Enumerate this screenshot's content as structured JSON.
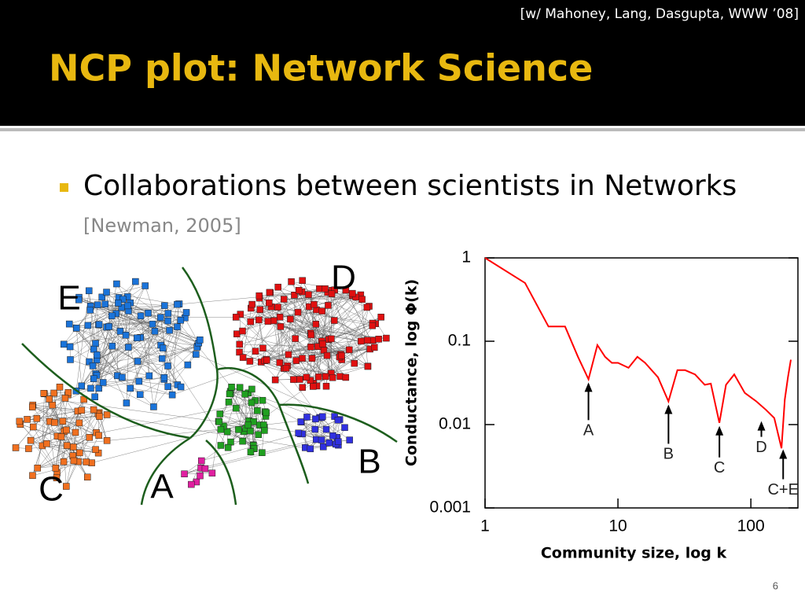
{
  "header": {
    "citation": "[w/ Mahoney, Lang, Dasgupta, WWW ’08]",
    "title": "NCP plot: Network Science"
  },
  "bullet": {
    "text": "Collaborations between scientists in Networks",
    "reference": "[Newman, 2005]"
  },
  "network": {
    "labels": [
      "E",
      "D",
      "C",
      "A",
      "B"
    ]
  },
  "chart_data": {
    "type": "line",
    "x_label": "Community size, log k",
    "y_label": "Conductance, log Φ(k)",
    "xscale": "log",
    "yscale": "log",
    "xlim": [
      1,
      226
    ],
    "ylim": [
      0.001,
      1
    ],
    "xticks": [
      1,
      10,
      100
    ],
    "yticks": [
      0.001,
      0.01,
      0.1,
      1
    ],
    "x": [
      1,
      2,
      3,
      4,
      5,
      6,
      7,
      8,
      9,
      10,
      12,
      14,
      16,
      20,
      24,
      28,
      32,
      38,
      45,
      50,
      58,
      65,
      75,
      90,
      110,
      130,
      150,
      170,
      180,
      190,
      200
    ],
    "series": [
      {
        "color": "#ff0000",
        "values": [
          1,
          0.5,
          0.15,
          0.15,
          0.065,
          0.035,
          0.09,
          0.065,
          0.055,
          0.055,
          0.048,
          0.065,
          0.055,
          0.037,
          0.019,
          0.045,
          0.045,
          0.04,
          0.03,
          0.031,
          0.0105,
          0.03,
          0.04,
          0.024,
          0.019,
          0.015,
          0.012,
          0.0052,
          0.02,
          0.037,
          0.06
        ]
      }
    ],
    "annotations": [
      {
        "label": "A",
        "x": 6,
        "y": 0.035
      },
      {
        "label": "B",
        "x": 24,
        "y": 0.019
      },
      {
        "label": "C",
        "x": 58,
        "y": 0.0105
      },
      {
        "label": "D",
        "x": 120,
        "y": 0.012
      },
      {
        "label": "C+E",
        "x": 175,
        "y": 0.0055
      }
    ]
  },
  "page_number": "6"
}
